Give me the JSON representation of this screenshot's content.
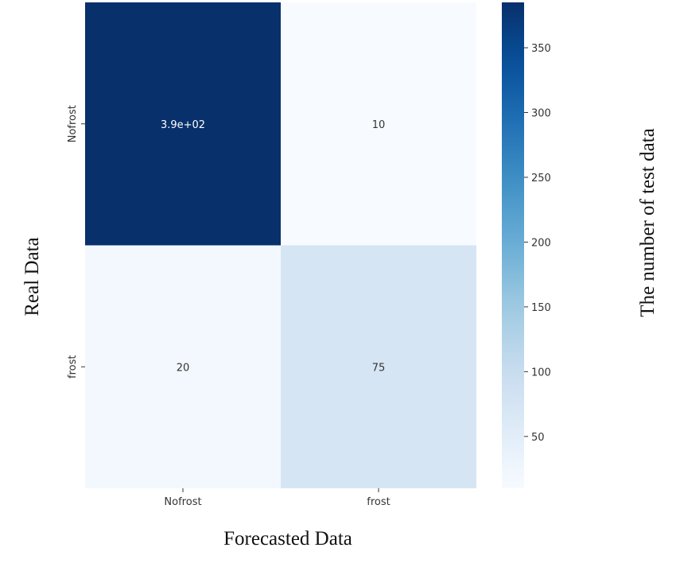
{
  "chart_data": {
    "type": "heatmap",
    "title": "",
    "x_categories": [
      "Nofrost",
      "frost"
    ],
    "y_categories": [
      "Nofrost",
      "frost"
    ],
    "values": [
      [
        385,
        10
      ],
      [
        20,
        75
      ]
    ],
    "annotations": [
      [
        "3.9e+02",
        "10"
      ],
      [
        "20",
        "75"
      ]
    ],
    "xlabel": "Forecasted Data",
    "ylabel": "Real Data",
    "colorbar": {
      "label": "The number of test data",
      "min": 10,
      "max": 385,
      "ticks": [
        50,
        100,
        150,
        200,
        250,
        300,
        350
      ],
      "colormap": "Blues"
    },
    "colors": {
      "low": "#f7fbff",
      "high": "#08306b",
      "text_on_light": "#333333",
      "text_on_dark": "#ffffff"
    }
  }
}
